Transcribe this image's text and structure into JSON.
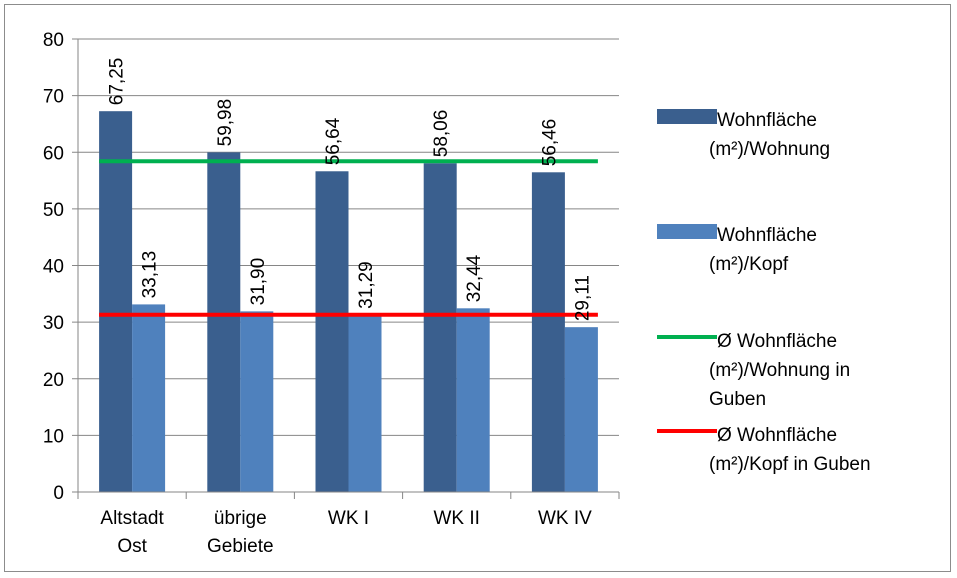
{
  "chart_data": {
    "type": "bar",
    "categories": [
      [
        "Altstadt",
        "Ost"
      ],
      [
        "übrige",
        "Gebiete"
      ],
      [
        "WK I"
      ],
      [
        "WK II"
      ],
      [
        "WK IV"
      ]
    ],
    "series": [
      {
        "name": [
          "Wohnfläche",
          "(m²)/Wohnung"
        ],
        "color": "#3A5F8E",
        "values": [
          67.25,
          59.98,
          56.64,
          58.06,
          56.46
        ],
        "labels": [
          "67,25",
          "59,98",
          "56,64",
          "58,06",
          "56,46"
        ]
      },
      {
        "name": [
          "Wohnfläche",
          "(m²)/Kopf"
        ],
        "color": "#4F81BD",
        "values": [
          33.13,
          31.9,
          31.29,
          32.44,
          29.11
        ],
        "labels": [
          "33,13",
          "31,90",
          "31,29",
          "32,44",
          "29,11"
        ]
      }
    ],
    "reference_lines": [
      {
        "name": [
          "Ø Wohnfläche",
          "(m²)/Wohnung in",
          "Guben"
        ],
        "color": "#00B050",
        "value": 58.4
      },
      {
        "name": [
          "Ø Wohnfläche",
          "(m²)/Kopf in Guben"
        ],
        "color": "#FF0000",
        "value": 31.3
      }
    ],
    "ylim": [
      0,
      80
    ],
    "yticks": [
      0,
      10,
      20,
      30,
      40,
      50,
      60,
      70,
      80
    ],
    "grid": true,
    "legend": "right"
  }
}
